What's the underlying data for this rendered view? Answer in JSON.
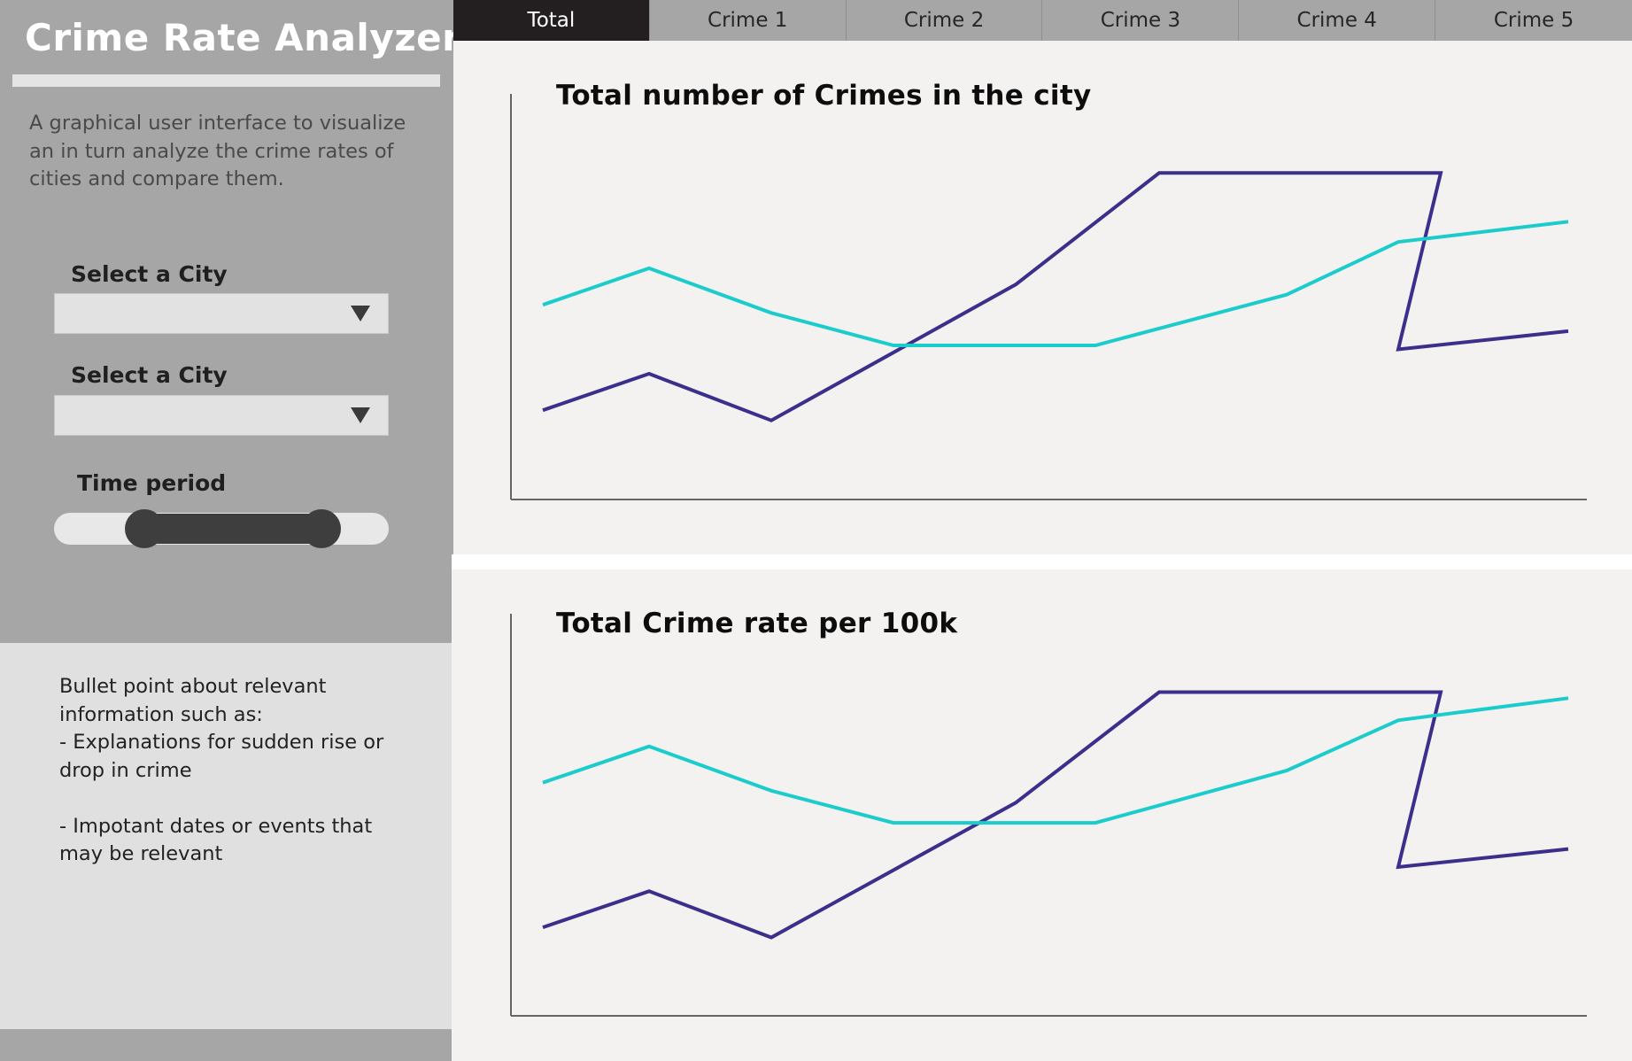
{
  "sidebar": {
    "title": "Crime Rate Analyzer",
    "description": "A graphical user interface to visualize an in turn analyze the crime rates of cities and compare them.",
    "city_select_1": {
      "label": "Select a City",
      "value": ""
    },
    "city_select_2": {
      "label": "Select a City",
      "value": ""
    },
    "time_period": {
      "label": "Time period",
      "range_start": 0.27,
      "range_end": 0.8
    },
    "info": "Bullet point about relevant information such as:\n- Explanations for sudden rise or drop in crime\n\n- Impotant dates or events that may be relevant"
  },
  "tabs": [
    {
      "label": "Total",
      "active": true
    },
    {
      "label": "Crime 1",
      "active": false
    },
    {
      "label": "Crime 2",
      "active": false
    },
    {
      "label": "Crime 3",
      "active": false
    },
    {
      "label": "Crime 4",
      "active": false
    },
    {
      "label": "Crime 5",
      "active": false
    }
  ],
  "colors": {
    "series_a": "#3c2f8c",
    "series_b": "#1ccccc",
    "axis": "#666666"
  },
  "chart_data": [
    {
      "type": "line",
      "title": "Total number of Crimes in the city",
      "xlabel": "",
      "ylabel": "",
      "xlim": [
        0,
        100
      ],
      "ylim": [
        0,
        100
      ],
      "grid": false,
      "series": [
        {
          "x": [
            3,
            13,
            24.5,
            47.5,
            61,
            87.5,
            83.5,
            99.5
          ],
          "y": [
            22,
            31,
            19.5,
            53,
            80.5,
            80.5,
            37,
            41.5
          ]
        },
        {
          "x": [
            3,
            13,
            24.5,
            36,
            55,
            73,
            83.5,
            99.5
          ],
          "y": [
            48,
            57,
            46,
            38,
            38,
            50.5,
            63.5,
            68.5
          ]
        }
      ]
    },
    {
      "type": "line",
      "title": "Total Crime rate per 100k",
      "xlabel": "",
      "ylabel": "",
      "xlim": [
        0,
        100
      ],
      "ylim": [
        0,
        100
      ],
      "grid": false,
      "series": [
        {
          "x": [
            3,
            13,
            24.5,
            47.5,
            61,
            87.5,
            83.5,
            99.5
          ],
          "y": [
            22,
            31,
            19.5,
            53,
            80.5,
            80.5,
            37,
            41.5
          ]
        },
        {
          "x": [
            3,
            13,
            24.5,
            36,
            55,
            73,
            83.5,
            99.5
          ],
          "y": [
            58,
            67,
            56,
            48,
            48,
            61,
            73.5,
            79
          ]
        }
      ]
    }
  ]
}
